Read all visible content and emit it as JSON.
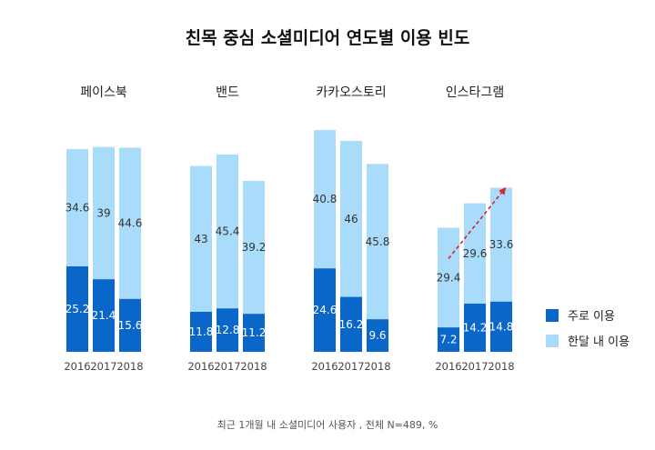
{
  "chart_data": {
    "type": "bar",
    "stacked": true,
    "title": "친목 중심 소셜미디어 연도별 이용 빈도",
    "groups": [
      {
        "name": "페이스북",
        "years": [
          "2016",
          "2017",
          "2018"
        ],
        "primary": [
          25.2,
          21.4,
          15.6
        ],
        "monthly": [
          34.6,
          39,
          44.6
        ]
      },
      {
        "name": "밴드",
        "years": [
          "2016",
          "2017",
          "2018"
        ],
        "primary": [
          11.8,
          12.8,
          11.2
        ],
        "monthly": [
          43,
          45.4,
          39.2
        ]
      },
      {
        "name": "카카오스토리",
        "years": [
          "2016",
          "2017",
          "2018"
        ],
        "primary": [
          24.6,
          16.2,
          9.6
        ],
        "monthly": [
          40.8,
          46,
          45.8
        ]
      },
      {
        "name": "인스타그램",
        "years": [
          "2016",
          "2017",
          "2018"
        ],
        "primary": [
          7.2,
          14.2,
          14.8
        ],
        "monthly": [
          29.4,
          29.6,
          33.6
        ]
      }
    ],
    "series": [
      {
        "name": "주로 이용",
        "key": "primary",
        "color": "#0a66c8"
      },
      {
        "name": "한달 내 이용",
        "key": "monthly",
        "color": "#a9dcfb"
      }
    ],
    "ylim": [
      0,
      70
    ],
    "legend": "right",
    "annotation": "upward-trend-arrow-instagram",
    "arrow_color": "#d9232e",
    "footnote": "최근 1개월 내 소셜미디어 사용자 , 전체 N=489, %"
  }
}
